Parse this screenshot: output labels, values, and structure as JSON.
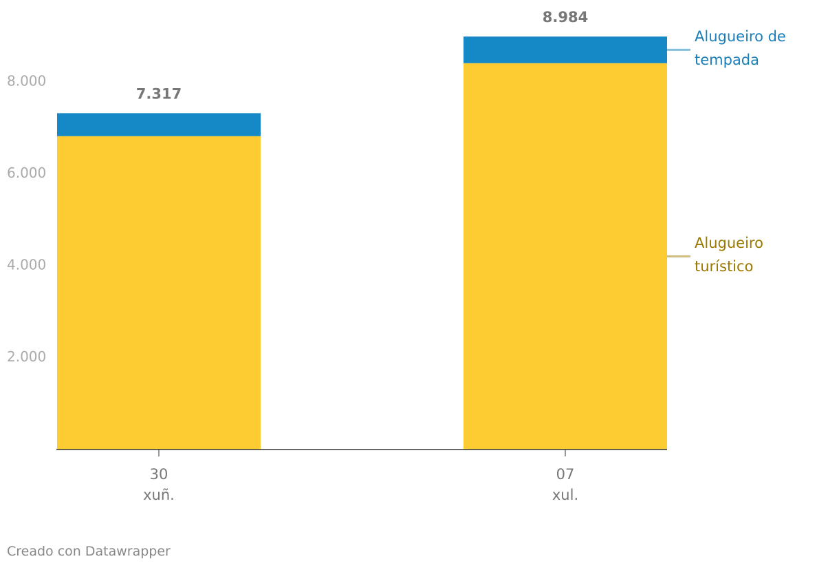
{
  "chart_data": {
    "type": "stacked_bar",
    "categories": [
      "30 xuñ.",
      "07 xul."
    ],
    "series": [
      {
        "name": "Alugueiro turístico",
        "color": "#fdcb32",
        "label_color": "#9b7800",
        "line_color": "#cfbd80",
        "values": [
          6817,
          8404
        ]
      },
      {
        "name": "Alugueiro de tempada",
        "color": "#1589c6",
        "label_color": "#1a7fb8",
        "line_color": "#83bfdc",
        "values": [
          500,
          580
        ]
      }
    ],
    "totals": {
      "values": [
        7317,
        8984
      ],
      "value_labels": [
        "7.317",
        "8.984"
      ]
    },
    "ylim": [
      0,
      9000
    ],
    "yticks": [
      {
        "value": 2000,
        "label": "2.000"
      },
      {
        "value": 4000,
        "label": "4.000"
      },
      {
        "value": 6000,
        "label": "6.000"
      },
      {
        "value": 8000,
        "label": "8.000"
      }
    ],
    "grid": false,
    "credit": "Creado con Datawrapper"
  }
}
